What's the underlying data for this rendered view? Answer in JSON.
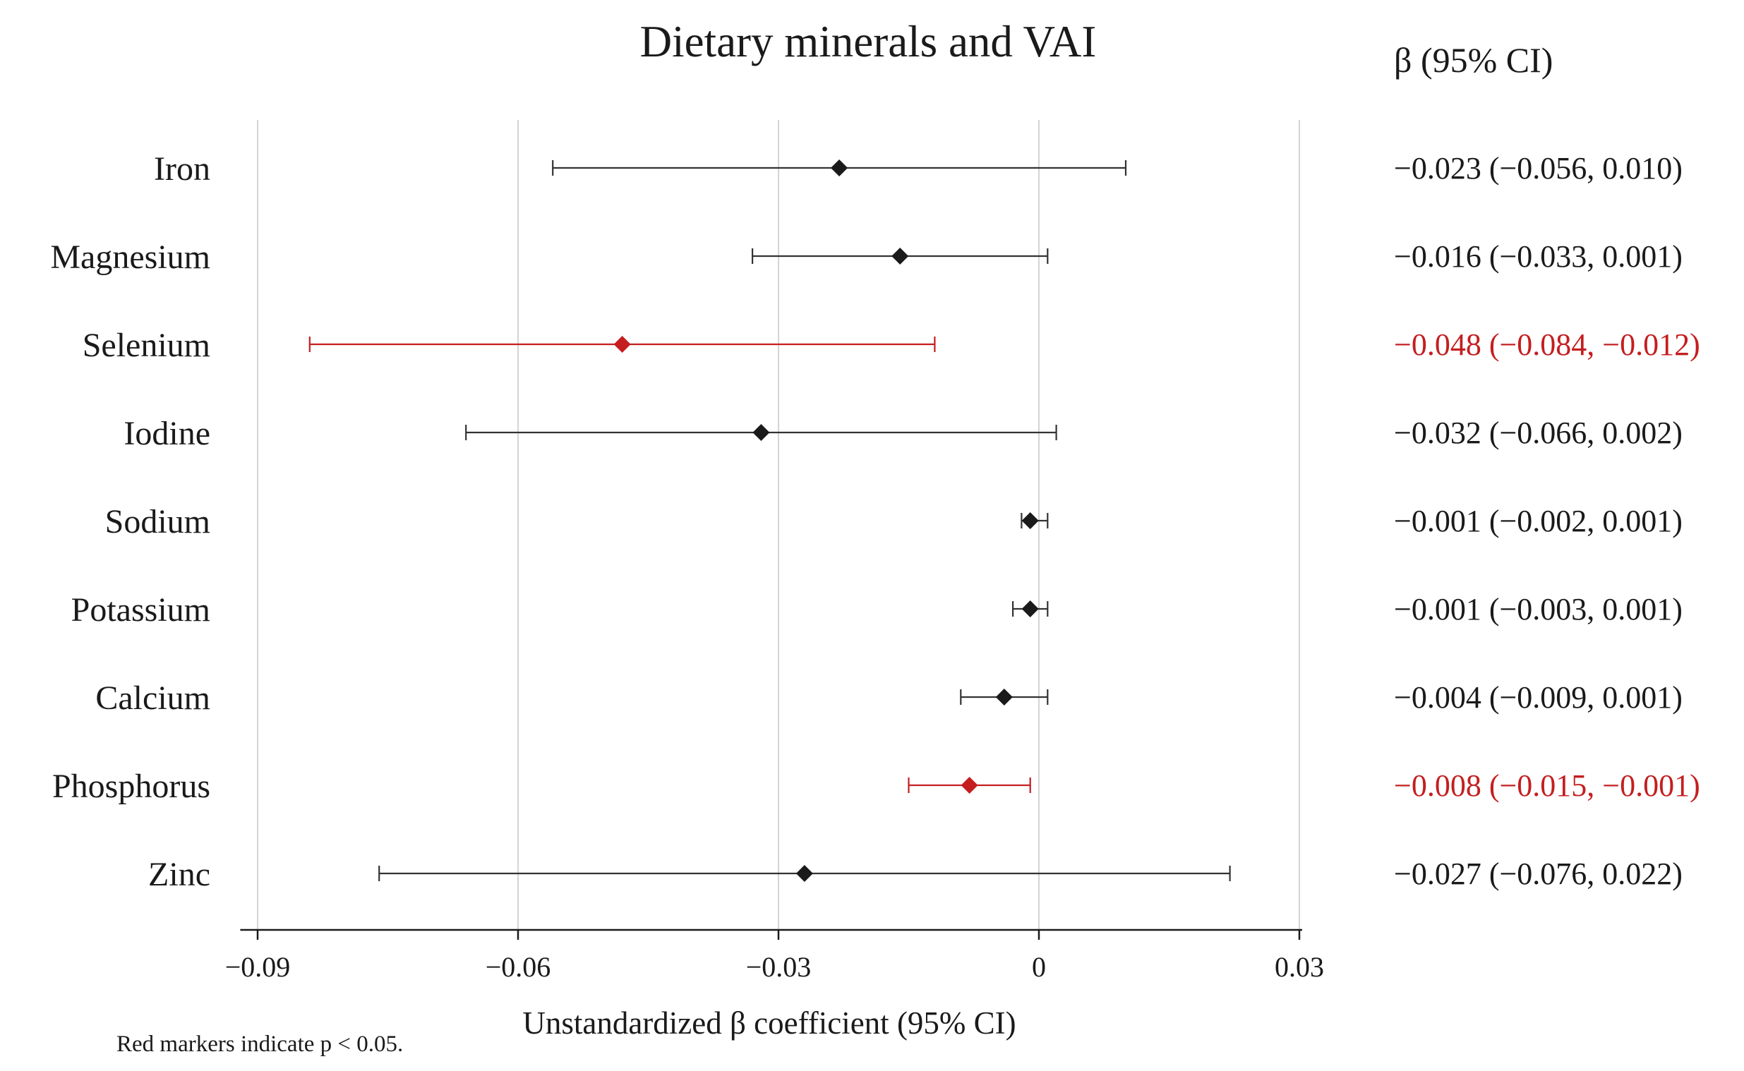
{
  "chart_data": {
    "type": "forest",
    "title": "Dietary minerals and VAI",
    "xlabel": "Unstandardized β coefficient (95% CI)",
    "ci_column_header": "β (95% CI)",
    "xlim": [
      -0.092,
      0.03
    ],
    "xticks": [
      -0.09,
      -0.06,
      -0.03,
      0,
      0.03
    ],
    "xtick_labels": [
      "−0.09",
      "−0.06",
      "−0.03",
      "0",
      "0.03"
    ],
    "grid": "vertical",
    "reference_line": 0,
    "significant_color": "#c41e20",
    "default_color": "#1a1a1a",
    "footnote": "Red markers indicate p < 0.05.",
    "rows": [
      {
        "label": "Iron",
        "beta": -0.023,
        "lower": -0.056,
        "upper": 0.01,
        "significant": false,
        "ci_text": "−0.023 (−0.056, 0.010)"
      },
      {
        "label": "Magnesium",
        "beta": -0.016,
        "lower": -0.033,
        "upper": 0.001,
        "significant": false,
        "ci_text": "−0.016 (−0.033, 0.001)"
      },
      {
        "label": "Selenium",
        "beta": -0.048,
        "lower": -0.084,
        "upper": -0.012,
        "significant": true,
        "ci_text": "−0.048 (−0.084, −0.012)"
      },
      {
        "label": "Iodine",
        "beta": -0.032,
        "lower": -0.066,
        "upper": 0.002,
        "significant": false,
        "ci_text": "−0.032 (−0.066, 0.002)"
      },
      {
        "label": "Sodium",
        "beta": -0.001,
        "lower": -0.002,
        "upper": 0.001,
        "significant": false,
        "ci_text": "−0.001 (−0.002, 0.001)"
      },
      {
        "label": "Potassium",
        "beta": -0.001,
        "lower": -0.003,
        "upper": 0.001,
        "significant": false,
        "ci_text": "−0.001 (−0.003, 0.001)"
      },
      {
        "label": "Calcium",
        "beta": -0.004,
        "lower": -0.009,
        "upper": 0.001,
        "significant": false,
        "ci_text": "−0.004 (−0.009, 0.001)"
      },
      {
        "label": "Phosphorus",
        "beta": -0.008,
        "lower": -0.015,
        "upper": -0.001,
        "significant": true,
        "ci_text": "−0.008 (−0.015, −0.001)"
      },
      {
        "label": "Zinc",
        "beta": -0.027,
        "lower": -0.076,
        "upper": 0.022,
        "significant": false,
        "ci_text": "−0.027 (−0.076, 0.022)"
      }
    ]
  }
}
